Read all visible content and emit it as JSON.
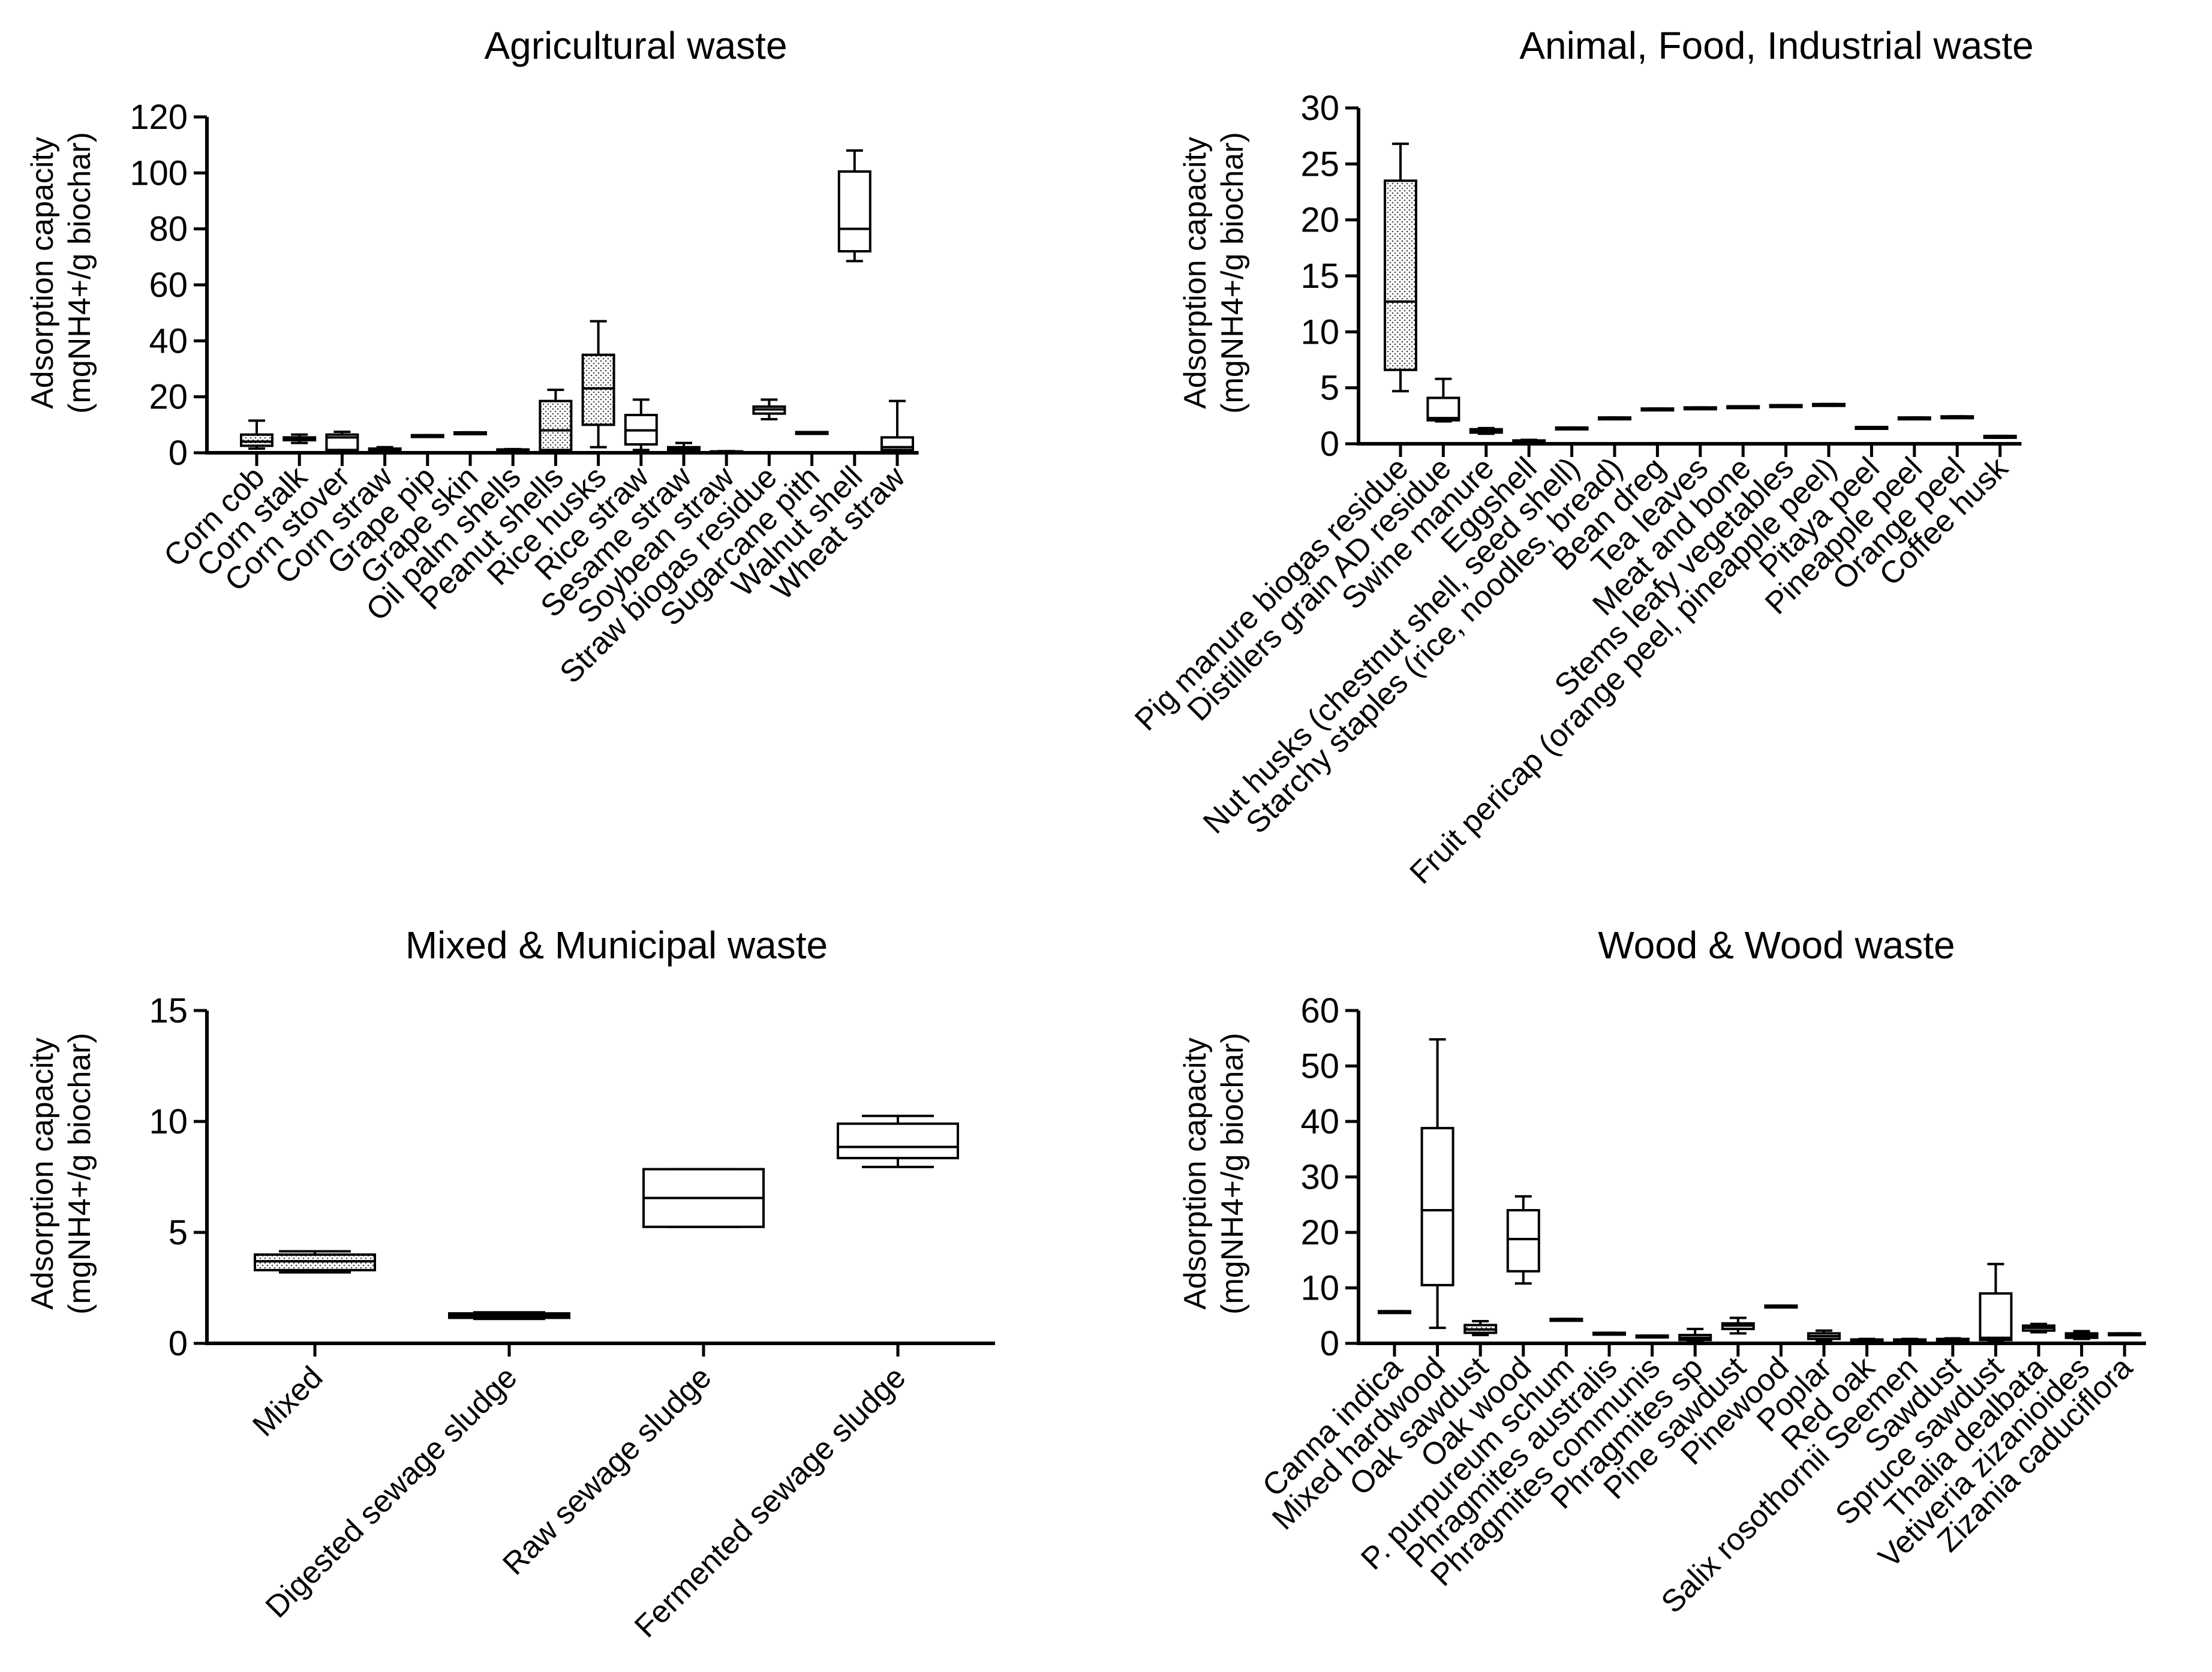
{
  "colors": {
    "ink": "#000000",
    "background": "#ffffff",
    "box_fill": "#ffffff",
    "hatch_fill": "#b8b8b8"
  },
  "chart_data": [
    {
      "type": "box",
      "title": "Agricultural waste",
      "ylabel": [
        "Adsorption capacity",
        "(mgNH4+/g biochar)"
      ],
      "ylim": [
        0,
        120
      ],
      "yticks": [
        0,
        20,
        40,
        60,
        80,
        100,
        120
      ],
      "categories": [
        "Corn cob",
        "Corn stalk",
        "Corn stover",
        "Corn straw",
        "Grape pip",
        "Grape skin",
        "Oil palm shells",
        "Peanut shells",
        "Rice husks",
        "Rice straw",
        "Sesame straw",
        "Soybean straw",
        "Straw biogas residue",
        "Sugarcane pith",
        "Walnut shell",
        "Wheat straw"
      ],
      "boxes": [
        {
          "min": 1.5,
          "q1": 2.5,
          "median": 4.0,
          "q3": 6.5,
          "max": 11.5,
          "fill": "hatched"
        },
        {
          "min": 3.5,
          "q1": 4.5,
          "median": 5.0,
          "q3": 5.5,
          "max": 6.5,
          "fill": "hatched"
        },
        {
          "min": 0.5,
          "q1": 1.0,
          "median": 5.5,
          "q3": 6.5,
          "max": 7.5,
          "fill": "open"
        },
        {
          "min": 0.3,
          "q1": 0.6,
          "median": 1.0,
          "q3": 1.5,
          "max": 2.0,
          "fill": "open"
        },
        {
          "min": 6.0,
          "q1": 6.0,
          "median": 6.2,
          "q3": 6.3,
          "max": 6.3,
          "fill": "open"
        },
        {
          "min": 7.0,
          "q1": 7.0,
          "median": 7.2,
          "q3": 7.3,
          "max": 7.3,
          "fill": "open"
        },
        {
          "min": 0.5,
          "q1": 0.6,
          "median": 0.9,
          "q3": 1.2,
          "max": 1.3,
          "fill": "open"
        },
        {
          "min": 0.5,
          "q1": 1.0,
          "median": 8.0,
          "q3": 18.5,
          "max": 22.5,
          "fill": "hatched"
        },
        {
          "min": 2.0,
          "q1": 10.0,
          "median": 23.0,
          "q3": 35.0,
          "max": 47.0,
          "fill": "hatched"
        },
        {
          "min": 1.0,
          "q1": 3.0,
          "median": 8.0,
          "q3": 13.5,
          "max": 19.0,
          "fill": "open"
        },
        {
          "min": 0.2,
          "q1": 0.8,
          "median": 1.5,
          "q3": 2.0,
          "max": 3.5,
          "fill": "open"
        },
        {
          "min": 0.2,
          "q1": 0.3,
          "median": 0.4,
          "q3": 0.5,
          "max": 0.6,
          "fill": "open"
        },
        {
          "min": 12.0,
          "q1": 14.0,
          "median": 15.5,
          "q3": 16.5,
          "max": 19.0,
          "fill": "open"
        },
        {
          "min": 7.2,
          "q1": 7.2,
          "median": 7.3,
          "q3": 7.4,
          "max": 7.4,
          "fill": "open"
        },
        {
          "min": 68.5,
          "q1": 72.0,
          "median": 80.0,
          "q3": 100.5,
          "max": 108.0,
          "fill": "open"
        },
        {
          "min": 0.5,
          "q1": 1.0,
          "median": 2.0,
          "q3": 5.5,
          "max": 18.5,
          "fill": "open"
        }
      ]
    },
    {
      "type": "box",
      "title": "Animal, Food, Industrial waste",
      "ylabel": [
        "Adsorption capacity",
        "(mgNH4+/g biochar)"
      ],
      "ylim": [
        0,
        30
      ],
      "yticks": [
        0,
        5,
        10,
        15,
        20,
        25,
        30
      ],
      "categories": [
        "Pig manure biogas residue",
        "Distillers grain AD residue",
        "Swine manure",
        "Eggshell",
        "Nut husks (chestnut shell, seed shell)",
        "Starchy staples (rice, noodles, bread)",
        "Bean dreg",
        "Tea leaves",
        "Meat and bone",
        "Stems leafy vegetables",
        "Fruit pericap (orange peel, pineapple peel)",
        "Pitaya peel",
        "Pineapple peel",
        "Orange peel",
        "Coffee husk"
      ],
      "boxes": [
        {
          "min": 4.7,
          "q1": 6.6,
          "median": 12.7,
          "q3": 23.5,
          "max": 26.8,
          "fill": "hatched"
        },
        {
          "min": 2.0,
          "q1": 2.1,
          "median": 2.3,
          "q3": 4.1,
          "max": 5.8,
          "fill": "open"
        },
        {
          "min": 0.9,
          "q1": 1.0,
          "median": 1.15,
          "q3": 1.3,
          "max": 1.4,
          "fill": "hatched"
        },
        {
          "min": 0.1,
          "q1": 0.15,
          "median": 0.25,
          "q3": 0.3,
          "max": 0.35,
          "fill": "open"
        },
        {
          "min": 1.35,
          "q1": 1.35,
          "median": 1.4,
          "q3": 1.45,
          "max": 1.45,
          "fill": "open"
        },
        {
          "min": 2.25,
          "q1": 2.25,
          "median": 2.3,
          "q3": 2.35,
          "max": 2.35,
          "fill": "open"
        },
        {
          "min": 3.05,
          "q1": 3.05,
          "median": 3.1,
          "q3": 3.15,
          "max": 3.15,
          "fill": "open"
        },
        {
          "min": 3.15,
          "q1": 3.15,
          "median": 3.2,
          "q3": 3.25,
          "max": 3.25,
          "fill": "open"
        },
        {
          "min": 3.25,
          "q1": 3.25,
          "median": 3.3,
          "q3": 3.35,
          "max": 3.35,
          "fill": "open"
        },
        {
          "min": 3.35,
          "q1": 3.35,
          "median": 3.4,
          "q3": 3.45,
          "max": 3.45,
          "fill": "open"
        },
        {
          "min": 3.45,
          "q1": 3.45,
          "median": 3.5,
          "q3": 3.55,
          "max": 3.55,
          "fill": "open"
        },
        {
          "min": 1.4,
          "q1": 1.4,
          "median": 1.45,
          "q3": 1.5,
          "max": 1.5,
          "fill": "open"
        },
        {
          "min": 2.25,
          "q1": 2.25,
          "median": 2.3,
          "q3": 2.35,
          "max": 2.35,
          "fill": "open"
        },
        {
          "min": 2.35,
          "q1": 2.35,
          "median": 2.4,
          "q3": 2.45,
          "max": 2.45,
          "fill": "open"
        },
        {
          "min": 0.55,
          "q1": 0.55,
          "median": 0.65,
          "q3": 0.7,
          "max": 0.7,
          "fill": "open"
        }
      ]
    },
    {
      "type": "box",
      "title": "Mixed & Municipal waste",
      "ylabel": [
        "Adsorption capacity",
        "(mgNH4+/g biochar)"
      ],
      "ylim": [
        0,
        15
      ],
      "yticks": [
        0,
        5,
        10,
        15
      ],
      "categories": [
        "Mixed",
        "Digested sewage sludge",
        "Raw sewage sludge",
        "Fermented sewage sludge"
      ],
      "boxes": [
        {
          "min": 3.2,
          "q1": 3.3,
          "median": 3.7,
          "q3": 4.0,
          "max": 4.15,
          "fill": "hatched"
        },
        {
          "min": 1.1,
          "q1": 1.15,
          "median": 1.25,
          "q3": 1.35,
          "max": 1.4,
          "fill": "hatched"
        },
        {
          "min": 5.25,
          "q1": 5.25,
          "median": 6.55,
          "q3": 7.85,
          "max": 7.85,
          "fill": "open"
        },
        {
          "min": 7.95,
          "q1": 8.35,
          "median": 8.85,
          "q3": 9.9,
          "max": 10.25,
          "fill": "open"
        }
      ]
    },
    {
      "type": "box",
      "title": "Wood & Wood waste",
      "ylabel": [
        "Adsorption capacity",
        "(mgNH4+/g biochar)"
      ],
      "ylim": [
        0,
        60
      ],
      "yticks": [
        0,
        10,
        20,
        30,
        40,
        50,
        60
      ],
      "categories": [
        "Canna indica",
        "Mixed hardwood",
        "Oak sawdust",
        "Oak wood",
        "P. purpureum schum",
        "Phragmites australis",
        "Phragmites communis",
        "Phragmites sp",
        "Pine sawdust",
        "Pinewood",
        "Poplar",
        "Red oak",
        "Salix rosothornii Seemen",
        "Sawdust",
        "Spruce sawdust",
        "Thalia dealbata",
        "Vetiveria zizanioides",
        "Zizania caduciflora"
      ],
      "boxes": [
        {
          "min": 5.6,
          "q1": 5.6,
          "median": 5.7,
          "q3": 5.8,
          "max": 5.8,
          "fill": "open"
        },
        {
          "min": 2.8,
          "q1": 10.5,
          "median": 24.0,
          "q3": 38.8,
          "max": 54.8,
          "fill": "open"
        },
        {
          "min": 1.5,
          "q1": 1.9,
          "median": 2.5,
          "q3": 3.3,
          "max": 4.0,
          "fill": "hatched"
        },
        {
          "min": 10.8,
          "q1": 13.0,
          "median": 18.8,
          "q3": 24.0,
          "max": 26.5,
          "fill": "open"
        },
        {
          "min": 4.2,
          "q1": 4.2,
          "median": 4.3,
          "q3": 4.4,
          "max": 4.4,
          "fill": "open"
        },
        {
          "min": 1.7,
          "q1": 1.7,
          "median": 1.8,
          "q3": 1.9,
          "max": 1.9,
          "fill": "open"
        },
        {
          "min": 1.2,
          "q1": 1.2,
          "median": 1.3,
          "q3": 1.4,
          "max": 1.4,
          "fill": "open"
        },
        {
          "min": 0.3,
          "q1": 0.6,
          "median": 1.0,
          "q3": 1.5,
          "max": 2.6,
          "fill": "open"
        },
        {
          "min": 1.8,
          "q1": 2.6,
          "median": 3.2,
          "q3": 3.6,
          "max": 4.6,
          "fill": "open"
        },
        {
          "min": 6.6,
          "q1": 6.6,
          "median": 6.7,
          "q3": 6.8,
          "max": 6.8,
          "fill": "open"
        },
        {
          "min": 0.4,
          "q1": 0.8,
          "median": 1.3,
          "q3": 1.8,
          "max": 2.3,
          "fill": "open"
        },
        {
          "min": 0.3,
          "q1": 0.4,
          "median": 0.6,
          "q3": 0.7,
          "max": 0.8,
          "fill": "open"
        },
        {
          "min": 0.3,
          "q1": 0.4,
          "median": 0.6,
          "q3": 0.7,
          "max": 0.8,
          "fill": "open"
        },
        {
          "min": 0.4,
          "q1": 0.5,
          "median": 0.7,
          "q3": 0.8,
          "max": 0.9,
          "fill": "open"
        },
        {
          "min": 0.3,
          "q1": 0.6,
          "median": 1.0,
          "q3": 9.0,
          "max": 14.3,
          "fill": "open"
        },
        {
          "min": 2.0,
          "q1": 2.3,
          "median": 2.8,
          "q3": 3.2,
          "max": 3.5,
          "fill": "hatched"
        },
        {
          "min": 0.8,
          "q1": 1.0,
          "median": 1.4,
          "q3": 1.8,
          "max": 2.2,
          "fill": "hatched"
        },
        {
          "min": 1.6,
          "q1": 1.6,
          "median": 1.7,
          "q3": 1.8,
          "max": 1.8,
          "fill": "open"
        }
      ]
    }
  ]
}
